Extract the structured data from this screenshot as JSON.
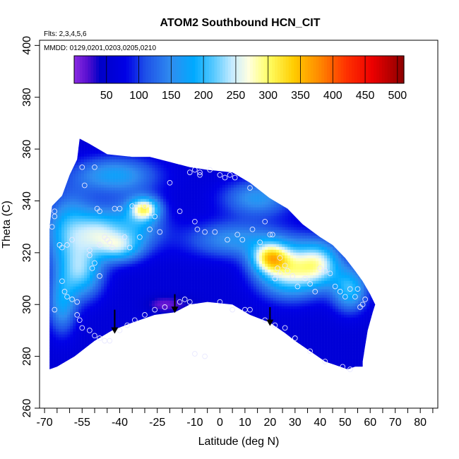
{
  "chart_data": {
    "type": "heatmap",
    "title": "ATOM2 Southbound HCN_CIT",
    "flights_label": "Flts: 2,3,4,5,6",
    "dates_label": "MMDD: 0129,0201,0203,0205,0210",
    "xlabel": "Latitude (deg N)",
    "ylabel": "Theta (C)",
    "xlim": [
      -72,
      87
    ],
    "ylim": [
      260,
      402
    ],
    "x_ticks": [
      -70,
      -55,
      -40,
      -25,
      -10,
      0,
      10,
      20,
      30,
      40,
      50,
      60,
      70,
      80
    ],
    "x_minor_ticks": [
      -65,
      -60,
      -50,
      -45,
      -35,
      -30,
      -20,
      -15,
      -5,
      5,
      15,
      25,
      35,
      45,
      55,
      65,
      75,
      85
    ],
    "y_ticks": [
      260,
      280,
      300,
      320,
      340,
      360,
      380,
      400
    ],
    "colorbar": {
      "range": [
        0,
        510
      ],
      "ticks": [
        50,
        100,
        150,
        200,
        250,
        300,
        350,
        400,
        450,
        500
      ],
      "stops": [
        {
          "v": 0,
          "c": "#8a2be2"
        },
        {
          "v": 20,
          "c": "#5a10d0"
        },
        {
          "v": 40,
          "c": "#0000c8"
        },
        {
          "v": 80,
          "c": "#0000e6"
        },
        {
          "v": 110,
          "c": "#1e50e8"
        },
        {
          "v": 150,
          "c": "#2f8df0"
        },
        {
          "v": 185,
          "c": "#00aaff"
        },
        {
          "v": 215,
          "c": "#55c8ff"
        },
        {
          "v": 245,
          "c": "#c8ecff"
        },
        {
          "v": 270,
          "c": "#ffffe0"
        },
        {
          "v": 300,
          "c": "#ffff66"
        },
        {
          "v": 340,
          "c": "#ffcc00"
        },
        {
          "v": 380,
          "c": "#ff8800"
        },
        {
          "v": 420,
          "c": "#ff3300"
        },
        {
          "v": 460,
          "c": "#ee0000"
        },
        {
          "v": 510,
          "c": "#8b0000"
        }
      ]
    },
    "region_upper": [
      [
        -68,
        330
      ],
      [
        -67,
        338
      ],
      [
        -63,
        342
      ],
      [
        -60,
        350
      ],
      [
        -57,
        356
      ],
      [
        -56,
        364
      ],
      [
        -52,
        362
      ],
      [
        -45,
        358
      ],
      [
        -35,
        357
      ],
      [
        -28,
        357
      ],
      [
        -20,
        355
      ],
      [
        -12,
        353
      ],
      [
        -5,
        352
      ],
      [
        5,
        351
      ],
      [
        12,
        347
      ],
      [
        20,
        341
      ],
      [
        27,
        337
      ],
      [
        33,
        331
      ],
      [
        40,
        326
      ],
      [
        45,
        323
      ],
      [
        50,
        318
      ],
      [
        54,
        313
      ],
      [
        57,
        309
      ],
      [
        60,
        304
      ],
      [
        62,
        300
      ],
      [
        61,
        297
      ],
      [
        59,
        290
      ],
      [
        58,
        284
      ],
      [
        57,
        278
      ]
    ],
    "region_lower": [
      [
        -68,
        275
      ],
      [
        -65,
        276
      ],
      [
        -58,
        280
      ],
      [
        -50,
        286
      ],
      [
        -43,
        290
      ],
      [
        -35,
        293
      ],
      [
        -26,
        296
      ],
      [
        -18,
        297
      ],
      [
        -12,
        300
      ],
      [
        -5,
        301
      ],
      [
        5,
        300
      ],
      [
        12,
        296
      ],
      [
        20,
        293
      ],
      [
        26,
        289
      ],
      [
        30,
        286
      ],
      [
        36,
        282
      ],
      [
        42,
        278
      ],
      [
        48,
        276
      ],
      [
        51,
        275
      ],
      [
        54,
        276
      ],
      [
        57,
        276
      ]
    ],
    "background_value": 60,
    "hotspots": [
      {
        "lat": -60,
        "theta": 328,
        "sx": 7,
        "sy": 10,
        "v": 145
      },
      {
        "lat": -55,
        "theta": 312,
        "sx": 6,
        "sy": 7,
        "v": 130
      },
      {
        "lat": -63,
        "theta": 300,
        "sx": 4,
        "sy": 8,
        "v": 105
      },
      {
        "lat": -48,
        "theta": 328,
        "sx": 6,
        "sy": 6,
        "v": 120
      },
      {
        "lat": -34,
        "theta": 331,
        "sx": 8,
        "sy": 7,
        "v": 115
      },
      {
        "lat": -30,
        "theta": 337,
        "sx": 4,
        "sy": 3,
        "v": 175
      },
      {
        "lat": -42,
        "theta": 350,
        "sx": 12,
        "sy": 5,
        "v": 110
      },
      {
        "lat": -40,
        "theta": 322,
        "sx": 6,
        "sy": 4,
        "v": 120
      },
      {
        "lat": 28,
        "theta": 313,
        "sx": 9,
        "sy": 7,
        "v": 195
      },
      {
        "lat": 20,
        "theta": 318,
        "sx": 5,
        "sy": 4,
        "v": 175
      },
      {
        "lat": 40,
        "theta": 316,
        "sx": 6,
        "sy": 6,
        "v": 140
      },
      {
        "lat": 52,
        "theta": 306,
        "sx": 5,
        "sy": 6,
        "v": 135
      },
      {
        "lat": 6,
        "theta": 325,
        "sx": 14,
        "sy": 5,
        "v": 95
      },
      {
        "lat": 15,
        "theta": 341,
        "sx": 10,
        "sy": 5,
        "v": 100
      },
      {
        "lat": -18,
        "theta": 300,
        "sx": 6,
        "sy": 2.5,
        "v": -30
      },
      {
        "lat": -24,
        "theta": 300,
        "sx": 4,
        "sy": 2,
        "v": -25
      }
    ],
    "points": [
      [
        -67,
        330
      ],
      [
        -66,
        334
      ],
      [
        -66,
        336
      ],
      [
        -66,
        298
      ],
      [
        -64,
        323
      ],
      [
        -63,
        322
      ],
      [
        -61,
        323
      ],
      [
        -59,
        325
      ],
      [
        -55,
        353
      ],
      [
        -54,
        346
      ],
      [
        -52,
        321
      ],
      [
        -52,
        319
      ],
      [
        -51,
        314
      ],
      [
        -50,
        316
      ],
      [
        -50,
        353
      ],
      [
        -49,
        337
      ],
      [
        -48,
        336
      ],
      [
        -48,
        311
      ],
      [
        -48,
        323
      ],
      [
        -46,
        326
      ],
      [
        -45,
        325
      ],
      [
        -44,
        324
      ],
      [
        -43,
        322
      ],
      [
        -42,
        337
      ],
      [
        -40,
        337
      ],
      [
        -38,
        326
      ],
      [
        -36,
        322
      ],
      [
        -35,
        338
      ],
      [
        -32,
        326
      ],
      [
        -30,
        338
      ],
      [
        -28,
        329
      ],
      [
        -26,
        334
      ],
      [
        -24,
        328
      ],
      [
        -20,
        347
      ],
      [
        -16,
        336
      ],
      [
        -12,
        351
      ],
      [
        -10,
        352
      ],
      [
        -8,
        351
      ],
      [
        -8,
        350
      ],
      [
        -10,
        332
      ],
      [
        -9,
        329
      ],
      [
        -6,
        328
      ],
      [
        -4,
        352
      ],
      [
        -2,
        328
      ],
      [
        0,
        350
      ],
      [
        2,
        349
      ],
      [
        3,
        325
      ],
      [
        4,
        350
      ],
      [
        6,
        349
      ],
      [
        7,
        327
      ],
      [
        9,
        325
      ],
      [
        12,
        345
      ],
      [
        13,
        329
      ],
      [
        16,
        324
      ],
      [
        18,
        332
      ],
      [
        20,
        327
      ],
      [
        21,
        327
      ],
      [
        22,
        310
      ],
      [
        23,
        314
      ],
      [
        24,
        312
      ],
      [
        24,
        318
      ],
      [
        26,
        315
      ],
      [
        27,
        313
      ],
      [
        29,
        311
      ],
      [
        31,
        307
      ],
      [
        34,
        310
      ],
      [
        36,
        308
      ],
      [
        38,
        305
      ],
      [
        40,
        314
      ],
      [
        42,
        313
      ],
      [
        44,
        312
      ],
      [
        46,
        307
      ],
      [
        48,
        305
      ],
      [
        50,
        303
      ],
      [
        52,
        306
      ],
      [
        54,
        303
      ],
      [
        55,
        306
      ],
      [
        56,
        299
      ],
      [
        57,
        300
      ],
      [
        58,
        302
      ],
      [
        -10,
        281
      ],
      [
        -6,
        280
      ],
      [
        0,
        301
      ],
      [
        5,
        298
      ],
      [
        10,
        298
      ],
      [
        12,
        298
      ],
      [
        18,
        294
      ],
      [
        22,
        292
      ],
      [
        26,
        291
      ],
      [
        30,
        287
      ],
      [
        36,
        282
      ],
      [
        42,
        278
      ],
      [
        49,
        276
      ],
      [
        52,
        275
      ],
      [
        -63,
        309
      ],
      [
        -62,
        305
      ],
      [
        -61,
        303
      ],
      [
        -59,
        302
      ],
      [
        -57,
        301
      ],
      [
        -57,
        296
      ],
      [
        -56,
        294
      ],
      [
        -55,
        291
      ],
      [
        -52,
        290
      ],
      [
        -50,
        288
      ],
      [
        -48,
        287
      ],
      [
        -46,
        286
      ],
      [
        -44,
        286
      ],
      [
        -40,
        290
      ],
      [
        -37,
        292
      ],
      [
        -34,
        294
      ],
      [
        -30,
        296
      ],
      [
        -26,
        298
      ],
      [
        -22,
        299
      ],
      [
        -16,
        301
      ],
      [
        -14,
        302
      ],
      [
        -12,
        301
      ]
    ],
    "arrows": [
      {
        "lat": -42,
        "theta_top": 298,
        "theta_tip": 289
      },
      {
        "lat": -18,
        "theta_top": 304,
        "theta_tip": 297
      },
      {
        "lat": 20,
        "theta_top": 299,
        "theta_tip": 292
      }
    ]
  }
}
